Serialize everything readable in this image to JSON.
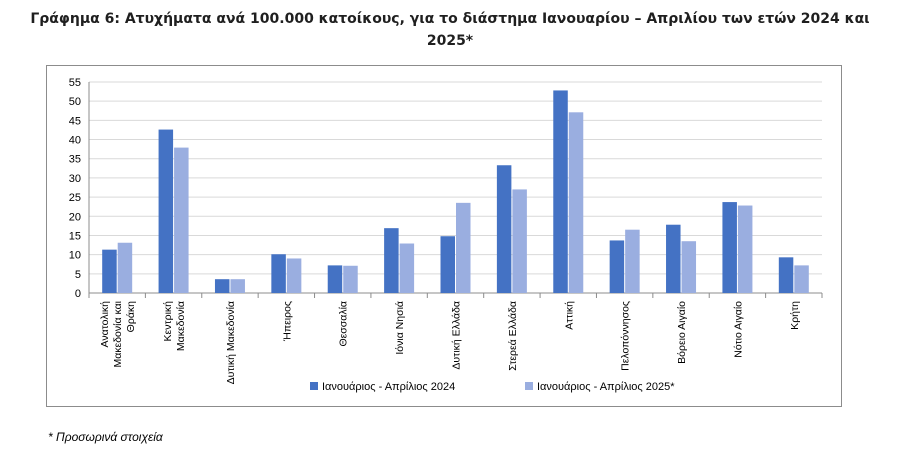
{
  "title": "Γράφημα 6: Ατυχήματα ανά 100.000 κατοίκους, για το διάστημα Ιανουαρίου – Απριλίου των ετών 2024 και 2025*",
  "footnote": "* Προσωρινά στοιχεία",
  "colors": {
    "series1": "#4472c4",
    "series2": "#9aaee0",
    "axis": "#8c8c8c",
    "grid": "#d9d9d9"
  },
  "chart_data": {
    "type": "bar",
    "title": "Γράφημα 6: Ατυχήματα ανά 100.000 κατοίκους, για το διάστημα Ιανουαρίου – Απριλίου των ετών 2024 και 2025*",
    "xlabel": "",
    "ylabel": "",
    "ylim": [
      0,
      55
    ],
    "yticks": [
      0,
      5,
      10,
      15,
      20,
      25,
      30,
      35,
      40,
      45,
      50,
      55
    ],
    "grid": true,
    "legend": "bottom",
    "categories": [
      [
        "Ανατολική",
        "Μακεδονία και",
        "Θράκη"
      ],
      [
        "Κεντρική",
        "Μακεδονία"
      ],
      [
        "Δυτική Μακεδονία"
      ],
      [
        "Ήπειρος"
      ],
      [
        "Θεσσαλία"
      ],
      [
        "Ιόνια Νησιά"
      ],
      [
        "Δυτική Ελλάδα"
      ],
      [
        "Στερεά Ελλάδα"
      ],
      [
        "Αττική"
      ],
      [
        "Πελοπόννησος"
      ],
      [
        "Βόρειο Αιγαίο"
      ],
      [
        "Νότιο Αιγαίο"
      ],
      [
        "Κρήτη"
      ]
    ],
    "series": [
      {
        "name": "Ιανουάριος - Απρίλιος 2024",
        "values": [
          11.3,
          42.6,
          3.6,
          10.1,
          7.2,
          16.9,
          14.8,
          33.3,
          52.8,
          13.7,
          17.8,
          23.7,
          9.3
        ]
      },
      {
        "name": "Ιανουάριος - Απρίλιος 2025*",
        "values": [
          13.1,
          37.9,
          3.6,
          9.0,
          7.1,
          12.9,
          23.5,
          27.0,
          47.1,
          16.5,
          13.5,
          22.8,
          7.2
        ]
      }
    ]
  }
}
